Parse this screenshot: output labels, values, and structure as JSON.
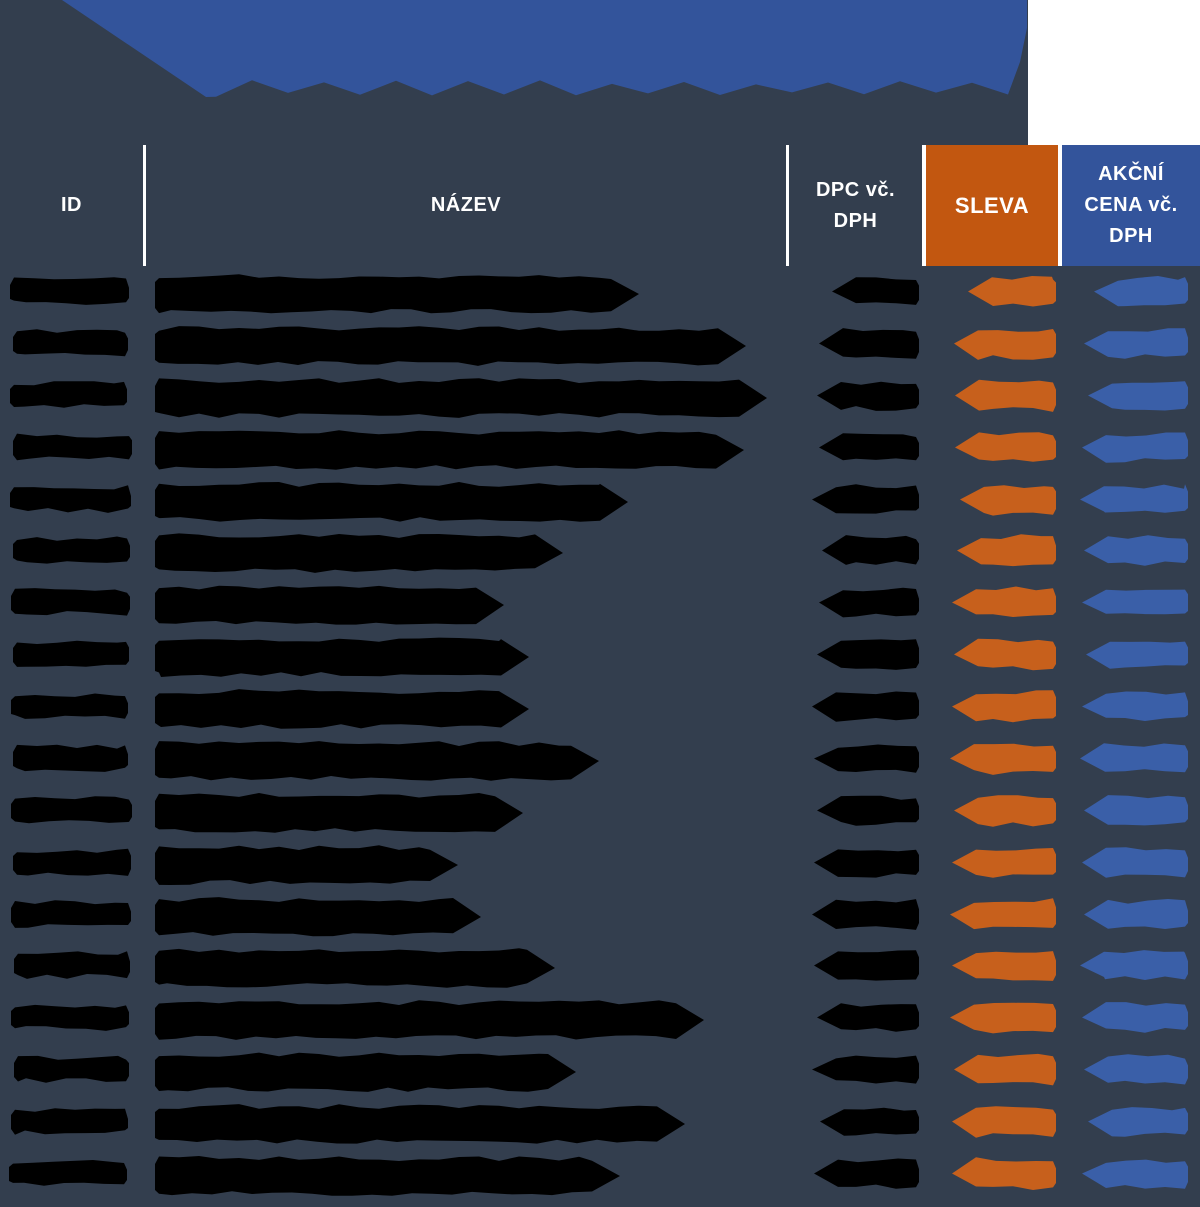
{
  "page": {
    "background": "#333E4E",
    "title_redaction_color": "#33549B",
    "corner_cutout_color": "#FFFFFF"
  },
  "table": {
    "headers": {
      "id_label": "ID",
      "nazev_label": "NÁZEV",
      "dpc_label_line1": "DPC vč.",
      "dpc_label_line2": "DPH",
      "sleva_label": "SLEVA",
      "akcni_label_line1": "AKČNÍ",
      "akcni_label_line2": "CENA vč.",
      "akcni_label_line3": "DPH"
    },
    "header_colors": {
      "sleva_bg": "#C25710",
      "akcni_bg": "#33549B",
      "text": "#FFFFFF",
      "divider": "#FFFFFF"
    },
    "redaction_colors": {
      "id": "#000000",
      "nazev": "#000000",
      "dpc": "#000000",
      "sleva": "#C7601C",
      "akcni": "#3A5FA8"
    },
    "redacted_rows": [
      {
        "name_end": 641,
        "dpc_start": 830,
        "sleva_start": 966,
        "akcni_start": 1092
      },
      {
        "name_end": 748,
        "dpc_start": 817,
        "sleva_start": 952,
        "akcni_start": 1082
      },
      {
        "name_end": 769,
        "dpc_start": 815,
        "sleva_start": 953,
        "akcni_start": 1086
      },
      {
        "name_end": 746,
        "dpc_start": 817,
        "sleva_start": 953,
        "akcni_start": 1080
      },
      {
        "name_end": 630,
        "dpc_start": 810,
        "sleva_start": 958,
        "akcni_start": 1078
      },
      {
        "name_end": 565,
        "dpc_start": 820,
        "sleva_start": 955,
        "akcni_start": 1082
      },
      {
        "name_end": 506,
        "dpc_start": 817,
        "sleva_start": 950,
        "akcni_start": 1080
      },
      {
        "name_end": 531,
        "dpc_start": 815,
        "sleva_start": 952,
        "akcni_start": 1084
      },
      {
        "name_end": 531,
        "dpc_start": 810,
        "sleva_start": 950,
        "akcni_start": 1080
      },
      {
        "name_end": 601,
        "dpc_start": 812,
        "sleva_start": 948,
        "akcni_start": 1078
      },
      {
        "name_end": 525,
        "dpc_start": 815,
        "sleva_start": 952,
        "akcni_start": 1082
      },
      {
        "name_end": 460,
        "dpc_start": 812,
        "sleva_start": 950,
        "akcni_start": 1080
      },
      {
        "name_end": 483,
        "dpc_start": 810,
        "sleva_start": 948,
        "akcni_start": 1082
      },
      {
        "name_end": 557,
        "dpc_start": 812,
        "sleva_start": 950,
        "akcni_start": 1078
      },
      {
        "name_end": 706,
        "dpc_start": 815,
        "sleva_start": 948,
        "akcni_start": 1080
      },
      {
        "name_end": 578,
        "dpc_start": 810,
        "sleva_start": 952,
        "akcni_start": 1082
      },
      {
        "name_end": 687,
        "dpc_start": 818,
        "sleva_start": 950,
        "akcni_start": 1086
      },
      {
        "name_end": 622,
        "dpc_start": 812,
        "sleva_start": 950,
        "akcni_start": 1080
      }
    ]
  }
}
